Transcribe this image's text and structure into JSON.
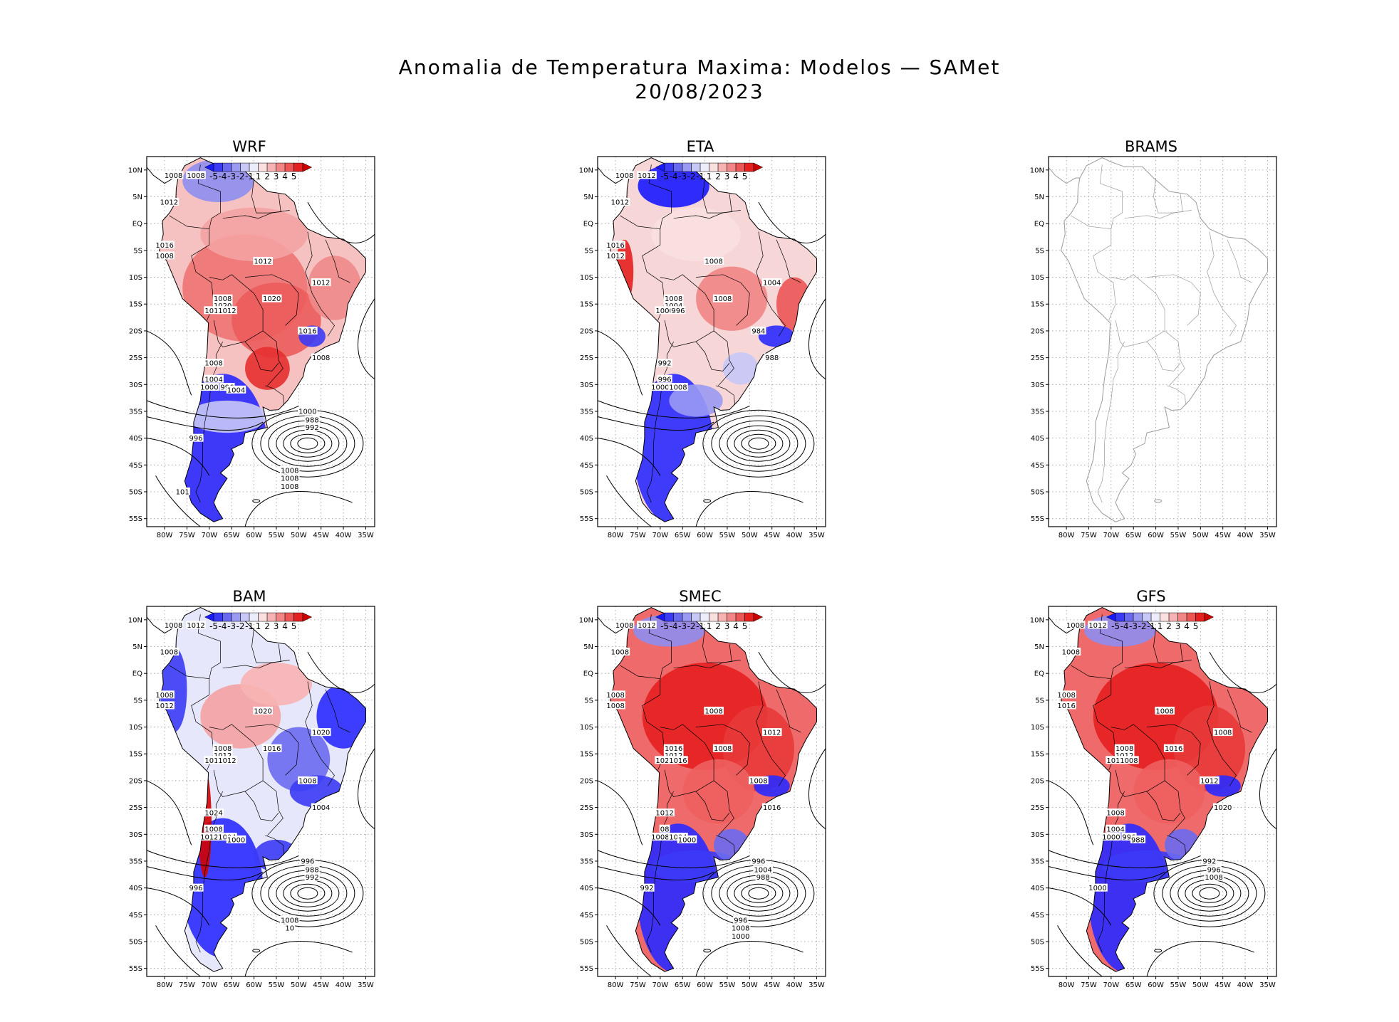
{
  "title_line1": "Anomalia de Temperatura Maxima: Modelos — SAMet",
  "title_line2": "20/08/2023",
  "lat_labels": [
    "10N",
    "5N",
    "EQ",
    "5S",
    "10S",
    "15S",
    "20S",
    "25S",
    "30S",
    "35S",
    "40S",
    "45S",
    "50S",
    "55S"
  ],
  "lon_labels": [
    "80W",
    "75W",
    "70W",
    "65W",
    "60W",
    "55W",
    "50W",
    "45W",
    "40W",
    "35W"
  ],
  "colorbar": {
    "labels": [
      "-5",
      "-4",
      "-3",
      "-2",
      "-1",
      "1",
      "2",
      "3",
      "4",
      "5"
    ],
    "colors": [
      "#1a1aff",
      "#3b3bf5",
      "#6a6af0",
      "#9a9af3",
      "#c8c8f7",
      "#ececfb",
      "#fbe0e0",
      "#f7b3b3",
      "#f28585",
      "#ec5656",
      "#e52020",
      "#cc0000"
    ]
  },
  "panels": [
    {
      "name": "WRF",
      "pattern": "warm",
      "labels": [
        "1008",
        "1008",
        "1012",
        "1016",
        "1008",
        "1012",
        "1008",
        "1020",
        "1016",
        "1012",
        "1020",
        "1012",
        "1016",
        "1008",
        "1008",
        "1004",
        "1000",
        "996",
        "1004",
        "1000",
        "988",
        "992",
        "996",
        "1008",
        "1008",
        "1008",
        "101"
      ]
    },
    {
      "name": "ETA",
      "pattern": "mixed",
      "labels": [
        "1008",
        "1012",
        "1012",
        "1016",
        "1012",
        "1008",
        "1008",
        "1004",
        "1000",
        "996",
        "1008",
        "1004",
        "984",
        "988",
        "992",
        "996",
        "1000",
        "1008"
      ]
    },
    {
      "name": "BRAMS",
      "pattern": "empty",
      "labels": []
    },
    {
      "name": "BAM",
      "pattern": "cool",
      "labels": [
        "1008",
        "1012",
        "1008",
        "1008",
        "1012",
        "1020",
        "1008",
        "1012",
        "1012",
        "1012",
        "1016",
        "1020",
        "1008",
        "1004",
        "1024",
        "1008",
        "1012",
        "1004",
        "1000",
        "996",
        "988",
        "992",
        "996",
        "1008",
        "10"
      ]
    },
    {
      "name": "SMEC",
      "pattern": "hot",
      "labels": [
        "1008",
        "1012",
        "1008",
        "1008",
        "1008",
        "1008",
        "1016",
        "1012",
        "1020",
        "1016",
        "1008",
        "1012",
        "1008",
        "1016",
        "1012",
        "08",
        "1008",
        "1004",
        "1000",
        "996",
        "1004",
        "988",
        "992",
        "996",
        "1008",
        "1000"
      ]
    },
    {
      "name": "GFS",
      "pattern": "hot",
      "labels": [
        "1008",
        "1012",
        "1008",
        "1008",
        "1016",
        "1008",
        "1008",
        "1012",
        "1012",
        "1008",
        "1016",
        "1008",
        "1012",
        "1020",
        "1008",
        "1004",
        "1000",
        "996",
        "988",
        "992",
        "996",
        "1008",
        "1000"
      ]
    }
  ]
}
